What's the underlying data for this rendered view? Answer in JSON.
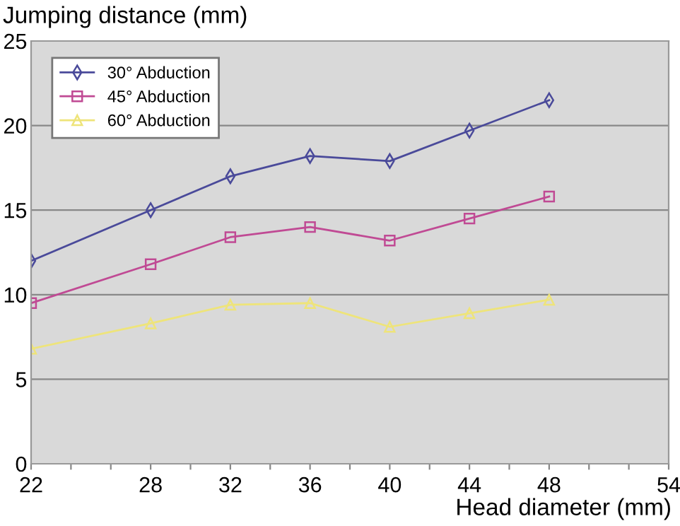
{
  "chart_data": {
    "type": "line",
    "xlabel": "Head diameter (mm)",
    "ylabel": "Jumping distance (mm)",
    "x": [
      22,
      28,
      32,
      36,
      40,
      44,
      48
    ],
    "series": [
      {
        "name": "30° Abduction",
        "color": "#4a4a9a",
        "marker": "diamond",
        "values": [
          12,
          15,
          17,
          18.2,
          17.9,
          19.7,
          21.5
        ]
      },
      {
        "name": "45° Abduction",
        "color": "#c04a94",
        "marker": "square",
        "values": [
          9.5,
          11.8,
          13.4,
          14,
          13.2,
          14.5,
          15.8
        ]
      },
      {
        "name": "60° Abduction",
        "color": "#eee47a",
        "marker": "triangle",
        "values": [
          6.8,
          8.3,
          9.4,
          9.5,
          8.1,
          8.9,
          9.7
        ]
      }
    ],
    "xlim": [
      22,
      54
    ],
    "xticks": [
      22,
      {
        "value": 24,
        "label": null
      },
      {
        "value": 26,
        "label": null
      },
      28,
      {
        "value": 30,
        "label": null
      },
      32,
      {
        "value": 34,
        "label": null
      },
      36,
      {
        "value": 38,
        "label": null
      },
      40,
      {
        "value": 42,
        "label": null
      },
      44,
      {
        "value": 46,
        "label": null
      },
      48,
      {
        "value": 50,
        "label": null
      },
      {
        "value": 52,
        "label": null
      },
      54
    ],
    "ylim": [
      0,
      25
    ],
    "yticks": [
      0,
      5,
      10,
      15,
      20,
      25
    ],
    "grid": "y",
    "legend": "top left"
  }
}
